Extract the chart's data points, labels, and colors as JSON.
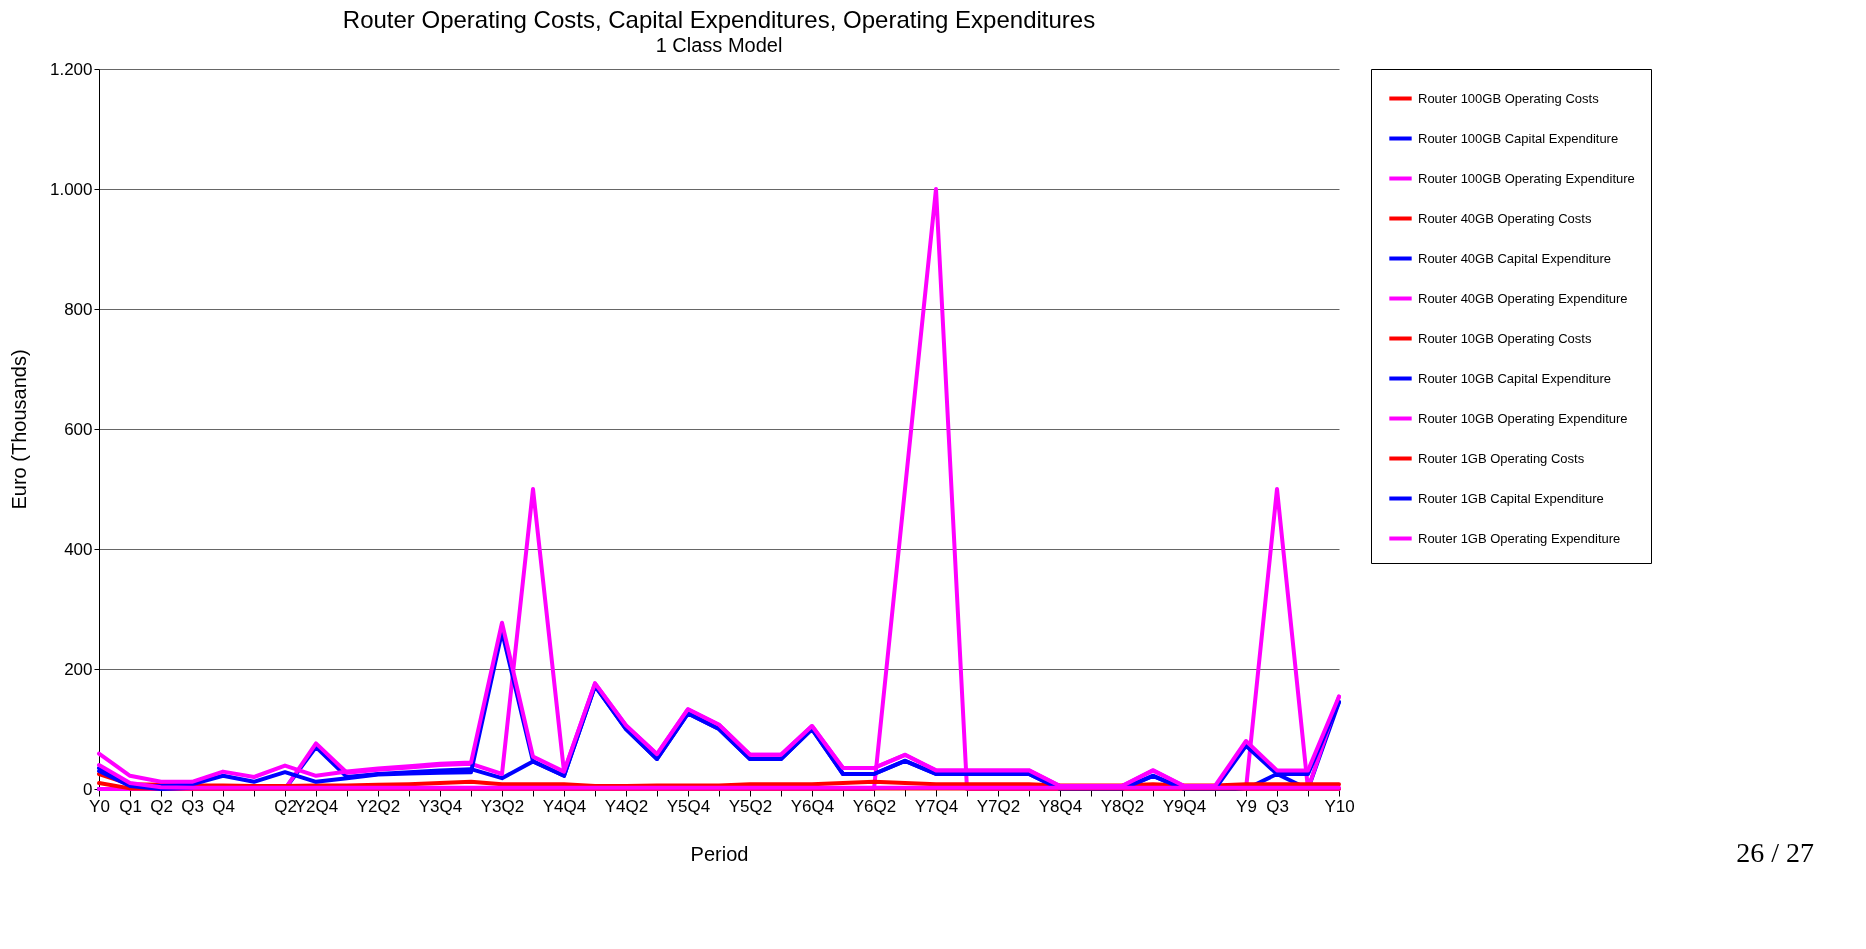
{
  "chart_data": {
    "type": "line",
    "title": "Router Operating Costs, Capital Expenditures, Operating Expenditures",
    "subtitle": "1 Class Model",
    "xlabel": "Period",
    "ylabel": "Euro (Thousands)",
    "annotations": [
      "26 / 27"
    ],
    "categories": [
      "Y0",
      "Q1",
      "Q2",
      "Q3",
      "Q4",
      null,
      "Q2",
      "Y2Q4",
      null,
      "Y2Q2",
      null,
      "Y3Q4",
      null,
      "Y3Q2",
      null,
      "Y4Q4",
      null,
      "Y4Q2",
      null,
      "Y5Q4",
      null,
      "Y5Q2",
      null,
      "Y6Q4",
      null,
      "Y6Q2",
      null,
      "Y7Q4",
      null,
      "Y7Q2",
      null,
      "Y8Q4",
      null,
      "Y8Q2",
      null,
      "Y9Q4",
      null,
      "Y9",
      "Q3",
      null,
      "Y10"
    ],
    "ylim": [
      0,
      1200
    ],
    "yticks": [
      0,
      200,
      400,
      600,
      800,
      {
        "value": 1000,
        "label": "1.000"
      },
      {
        "value": 1200,
        "label": "1.200"
      }
    ],
    "grid": "y",
    "legend": "right",
    "series": [
      {
        "name": "Router 100GB Operating Costs",
        "color": "#ff0000",
        "values": [
          null,
          null,
          null,
          null,
          null,
          null,
          null,
          null,
          null,
          null,
          null,
          null,
          null,
          null,
          null,
          null,
          null,
          null,
          null,
          null,
          null,
          null,
          null,
          null,
          null,
          null,
          null,
          null,
          null,
          null,
          null,
          null,
          null,
          null,
          null,
          null,
          null,
          null,
          null,
          null,
          null
        ]
      },
      {
        "name": "Router 100GB Capital Expenditure",
        "color": "#0000ff",
        "values": [
          null,
          null,
          null,
          null,
          null,
          null,
          null,
          null,
          null,
          null,
          null,
          null,
          null,
          null,
          null,
          null,
          null,
          null,
          null,
          null,
          null,
          null,
          null,
          null,
          null,
          null,
          null,
          null,
          null,
          null,
          null,
          null,
          null,
          null,
          null,
          null,
          null,
          null,
          null,
          null,
          null
        ]
      },
      {
        "name": "Router 100GB Operating Expenditure",
        "color": "#ff00ff",
        "values": [
          0,
          0,
          0,
          0,
          0,
          0,
          0,
          0,
          0,
          0,
          0,
          0,
          0,
          0,
          0,
          0,
          0,
          0,
          0,
          0,
          0,
          0,
          0,
          0,
          0,
          0,
          500,
          1000,
          0,
          0,
          0,
          0,
          0,
          0,
          0,
          0,
          0,
          0,
          0,
          0,
          0
        ]
      },
      {
        "name": "Router 40GB Operating Costs",
        "color": "#ff0000",
        "values": [
          null,
          null,
          null,
          null,
          null,
          null,
          null,
          null,
          null,
          null,
          null,
          null,
          null,
          null,
          null,
          null,
          null,
          null,
          null,
          null,
          null,
          null,
          null,
          null,
          null,
          null,
          null,
          null,
          null,
          null,
          null,
          null,
          null,
          null,
          null,
          null,
          null,
          null,
          null,
          null,
          null
        ]
      },
      {
        "name": "Router 40GB Capital Expenditure",
        "color": "#0000ff",
        "values": [
          0,
          0,
          0,
          0,
          0,
          0,
          0,
          70,
          20,
          25,
          28,
          31,
          33,
          18,
          46,
          22,
          172,
          100,
          50,
          126,
          100,
          50,
          50,
          100,
          25,
          25,
          47,
          25,
          25,
          25,
          25,
          0,
          0,
          0,
          22,
          0,
          0,
          0,
          25,
          0,
          145
        ]
      },
      {
        "name": "Router 40GB Operating Expenditure",
        "color": "#ff00ff",
        "values": [
          0,
          0,
          0,
          0,
          0,
          0,
          0,
          76,
          27,
          32,
          36,
          40,
          42,
          25,
          500,
          29,
          176,
          106,
          58,
          133,
          107,
          57,
          57,
          105,
          35,
          35,
          57,
          31,
          31,
          31,
          31,
          5,
          5,
          5,
          31,
          5,
          5,
          0,
          500,
          0,
          154
        ]
      },
      {
        "name": "Router 10GB Operating Costs",
        "color": "#ff0000",
        "values": [
          25,
          8,
          7,
          6,
          6,
          5,
          5,
          6,
          6,
          7,
          8,
          10,
          12,
          8,
          8,
          8,
          5,
          5,
          6,
          6,
          6,
          8,
          8,
          8,
          10,
          12,
          10,
          8,
          8,
          8,
          8,
          6,
          6,
          6,
          8,
          6,
          6,
          8,
          8,
          8,
          8
        ]
      },
      {
        "name": "Router 10GB Capital Expenditure",
        "color": "#0000ff",
        "values": [
          35,
          5,
          5,
          8,
          22,
          12,
          28,
          12,
          18,
          24,
          26,
          27,
          28,
          262,
          46,
          22,
          172,
          100,
          50,
          126,
          100,
          50,
          50,
          100,
          25,
          25,
          47,
          25,
          25,
          25,
          25,
          0,
          0,
          0,
          22,
          0,
          0,
          72,
          25,
          25,
          145
        ]
      },
      {
        "name": "Router 10GB Operating Expenditure",
        "color": "#ff00ff",
        "values": [
          59,
          22,
          12,
          12,
          29,
          20,
          39,
          22,
          29,
          34,
          38,
          42,
          44,
          277,
          54,
          29,
          176,
          106,
          58,
          133,
          107,
          57,
          57,
          105,
          35,
          35,
          57,
          31,
          31,
          31,
          31,
          5,
          5,
          5,
          31,
          5,
          5,
          80,
          31,
          31,
          154
        ]
      },
      {
        "name": "Router 1GB Operating Costs",
        "color": "#ff0000",
        "values": [
          10,
          1,
          1,
          1,
          1,
          1,
          1,
          1,
          1,
          1,
          1,
          1,
          1,
          1,
          1,
          1,
          1,
          1,
          1,
          1,
          1,
          1,
          1,
          1,
          1,
          1,
          1,
          1,
          1,
          1,
          1,
          1,
          1,
          1,
          1,
          1,
          1,
          1,
          1,
          1,
          1
        ]
      },
      {
        "name": "Router 1GB Capital Expenditure",
        "color": "#0000ff",
        "values": [
          30,
          5,
          0,
          2,
          null,
          null,
          null,
          null,
          null,
          null,
          null,
          null,
          null,
          null,
          null,
          null,
          null,
          null,
          null,
          null,
          null,
          null,
          null,
          null,
          null,
          null,
          null,
          null,
          null,
          null,
          null,
          null,
          null,
          null,
          null,
          null,
          null,
          null,
          null,
          null,
          null
        ]
      },
      {
        "name": "Router 1GB Operating Expenditure",
        "color": "#ff00ff",
        "values": [
          40,
          10,
          3,
          2,
          2,
          2,
          2,
          2,
          2,
          2,
          2,
          2,
          2,
          2,
          2,
          2,
          2,
          2,
          2,
          2,
          2,
          2,
          2,
          2,
          2,
          2,
          2,
          2,
          2,
          2,
          2,
          2,
          2,
          2,
          2,
          2,
          2,
          2,
          2,
          2,
          2
        ]
      }
    ]
  }
}
